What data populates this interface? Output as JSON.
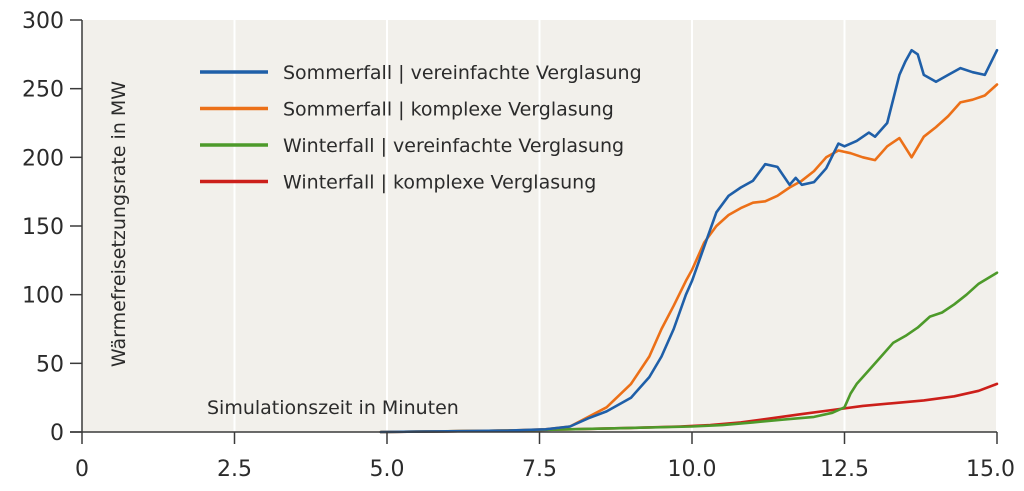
{
  "chart_data": {
    "type": "line",
    "title": "",
    "xlabel": "Simulationszeit in Minuten",
    "ylabel": "Wärmefreisetzungsrate in MW",
    "xlim": [
      0,
      15
    ],
    "ylim": [
      0,
      300
    ],
    "xticks": [
      0,
      2.5,
      5.0,
      7.5,
      10.0,
      12.5,
      15.0
    ],
    "xtick_labels": [
      "0",
      "2.5",
      "5.0",
      "7.5",
      "10.0",
      "12.5",
      "15.0"
    ],
    "yticks": [
      0,
      50,
      100,
      150,
      200,
      250,
      300
    ],
    "ytick_labels": [
      "0",
      "50",
      "100",
      "150",
      "200",
      "250",
      "300"
    ],
    "grid": "vertical",
    "legend_position": "top-left",
    "background": "#f2f0eb",
    "series": [
      {
        "name": "Sommerfall | vereinfachte Verglasung",
        "color": "#1f5fa8",
        "x": [
          4.9,
          6.0,
          7.0,
          7.6,
          8.0,
          8.3,
          8.6,
          9.0,
          9.3,
          9.5,
          9.7,
          9.9,
          10.0,
          10.2,
          10.4,
          10.6,
          10.8,
          11.0,
          11.2,
          11.4,
          11.6,
          11.7,
          11.8,
          12.0,
          12.2,
          12.4,
          12.5,
          12.7,
          12.9,
          13.0,
          13.2,
          13.4,
          13.5,
          13.6,
          13.7,
          13.8,
          14.0,
          14.2,
          14.4,
          14.6,
          14.8,
          15.0
        ],
        "y": [
          0,
          0.5,
          1,
          2,
          4,
          10,
          15,
          25,
          40,
          55,
          75,
          100,
          110,
          135,
          160,
          172,
          178,
          183,
          195,
          193,
          180,
          185,
          180,
          182,
          192,
          210,
          208,
          212,
          218,
          215,
          225,
          260,
          270,
          278,
          275,
          260,
          255,
          260,
          265,
          262,
          260,
          278
        ]
      },
      {
        "name": "Sommerfall | komplexe Verglasung",
        "color": "#ec7018",
        "x": [
          4.9,
          6.0,
          7.0,
          7.6,
          8.0,
          8.3,
          8.6,
          9.0,
          9.3,
          9.5,
          9.7,
          9.9,
          10.0,
          10.2,
          10.4,
          10.6,
          10.8,
          11.0,
          11.2,
          11.4,
          11.6,
          11.8,
          12.0,
          12.2,
          12.4,
          12.6,
          12.8,
          13.0,
          13.2,
          13.4,
          13.6,
          13.8,
          14.0,
          14.2,
          14.4,
          14.6,
          14.8,
          15.0
        ],
        "y": [
          0,
          0.5,
          1,
          2,
          4,
          11,
          18,
          35,
          55,
          75,
          92,
          110,
          118,
          138,
          150,
          158,
          163,
          167,
          168,
          172,
          178,
          183,
          190,
          200,
          205,
          203,
          200,
          198,
          208,
          214,
          200,
          215,
          222,
          230,
          240,
          242,
          245,
          253
        ]
      },
      {
        "name": "Winterfall | vereinfachte Verglasung",
        "color": "#4d9a2a",
        "x": [
          4.9,
          7.0,
          8.0,
          9.0,
          10.0,
          10.5,
          11.0,
          11.5,
          12.0,
          12.3,
          12.5,
          12.6,
          12.7,
          12.9,
          13.1,
          13.3,
          13.5,
          13.7,
          13.9,
          14.1,
          14.3,
          14.5,
          14.7,
          15.0
        ],
        "y": [
          0,
          1,
          2,
          3,
          4,
          5,
          7,
          9,
          11,
          14,
          18,
          28,
          35,
          45,
          55,
          65,
          70,
          76,
          84,
          87,
          93,
          100,
          108,
          116
        ]
      },
      {
        "name": "Winterfall | komplexe Verglasung",
        "color": "#cc1f1a",
        "x": [
          4.9,
          6.0,
          7.0,
          8.0,
          9.0,
          9.8,
          10.3,
          10.8,
          11.3,
          11.8,
          12.3,
          12.8,
          13.3,
          13.8,
          14.3,
          14.7,
          15.0
        ],
        "y": [
          0,
          0.5,
          1,
          2,
          3,
          4,
          5,
          7,
          10,
          13,
          16,
          19,
          21,
          23,
          26,
          30,
          35
        ]
      }
    ]
  }
}
